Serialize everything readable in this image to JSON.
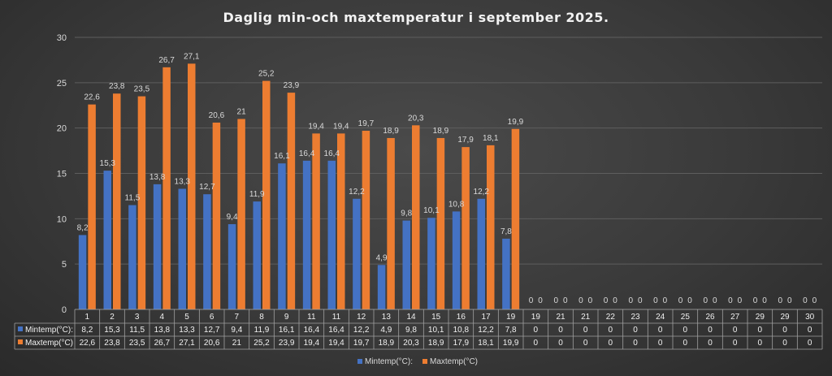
{
  "chart_data": {
    "type": "bar",
    "title": "Daglig min-och maxtemperatur i september 2025.",
    "categories": [
      "1",
      "2",
      "3",
      "4",
      "5",
      "6",
      "7",
      "8",
      "9",
      "11",
      "11",
      "12",
      "13",
      "14",
      "15",
      "16",
      "17",
      "19",
      "19",
      "21",
      "21",
      "22",
      "23",
      "24",
      "25",
      "26",
      "27",
      "29",
      "29",
      "30"
    ],
    "series": [
      {
        "name": "Mintemp(°C):",
        "values": [
          8.2,
          15.3,
          11.5,
          13.8,
          13.3,
          12.7,
          9.4,
          11.9,
          16.1,
          16.4,
          16.4,
          12.2,
          4.9,
          9.8,
          10.1,
          10.8,
          12.2,
          7.8,
          0,
          0,
          0,
          0,
          0,
          0,
          0,
          0,
          0,
          0,
          0,
          0
        ],
        "color": "#4472C4"
      },
      {
        "name": "Maxtemp(°C)",
        "values": [
          22.6,
          23.8,
          23.5,
          26.7,
          27.1,
          20.6,
          21,
          25.2,
          23.9,
          19.4,
          19.4,
          19.7,
          18.9,
          20.3,
          18.9,
          17.9,
          18.1,
          19.9,
          0,
          0,
          0,
          0,
          0,
          0,
          0,
          0,
          0,
          0,
          0,
          0
        ],
        "color": "#ED7D31"
      }
    ],
    "series_labels": [
      "8,2",
      "15,3",
      "11,5",
      "13,8",
      "13,3",
      "12,7",
      "9,4",
      "11,9",
      "16,1",
      "16,4",
      "16,4",
      "12,2",
      "4,9",
      "9,8",
      "10,1",
      "10,8",
      "12,2",
      "7,8",
      "0",
      "0",
      "0",
      "0",
      "0",
      "0",
      "0",
      "0",
      "0",
      "0",
      "0",
      "0"
    ],
    "series_labels_max": [
      "22,6",
      "23,8",
      "23,5",
      "26,7",
      "27,1",
      "20,6",
      "21",
      "25,2",
      "23,9",
      "19,4",
      "19,4",
      "19,7",
      "18,9",
      "20,3",
      "18,9",
      "17,9",
      "18,1",
      "19,9",
      "0",
      "0",
      "0",
      "0",
      "0",
      "0",
      "0",
      "0",
      "0",
      "0",
      "0",
      "0"
    ],
    "ylim": [
      0,
      30
    ],
    "yticks": [
      0,
      5,
      10,
      15,
      20,
      25,
      30
    ],
    "grid": true,
    "legend": "bottom-center",
    "data_table": true
  }
}
